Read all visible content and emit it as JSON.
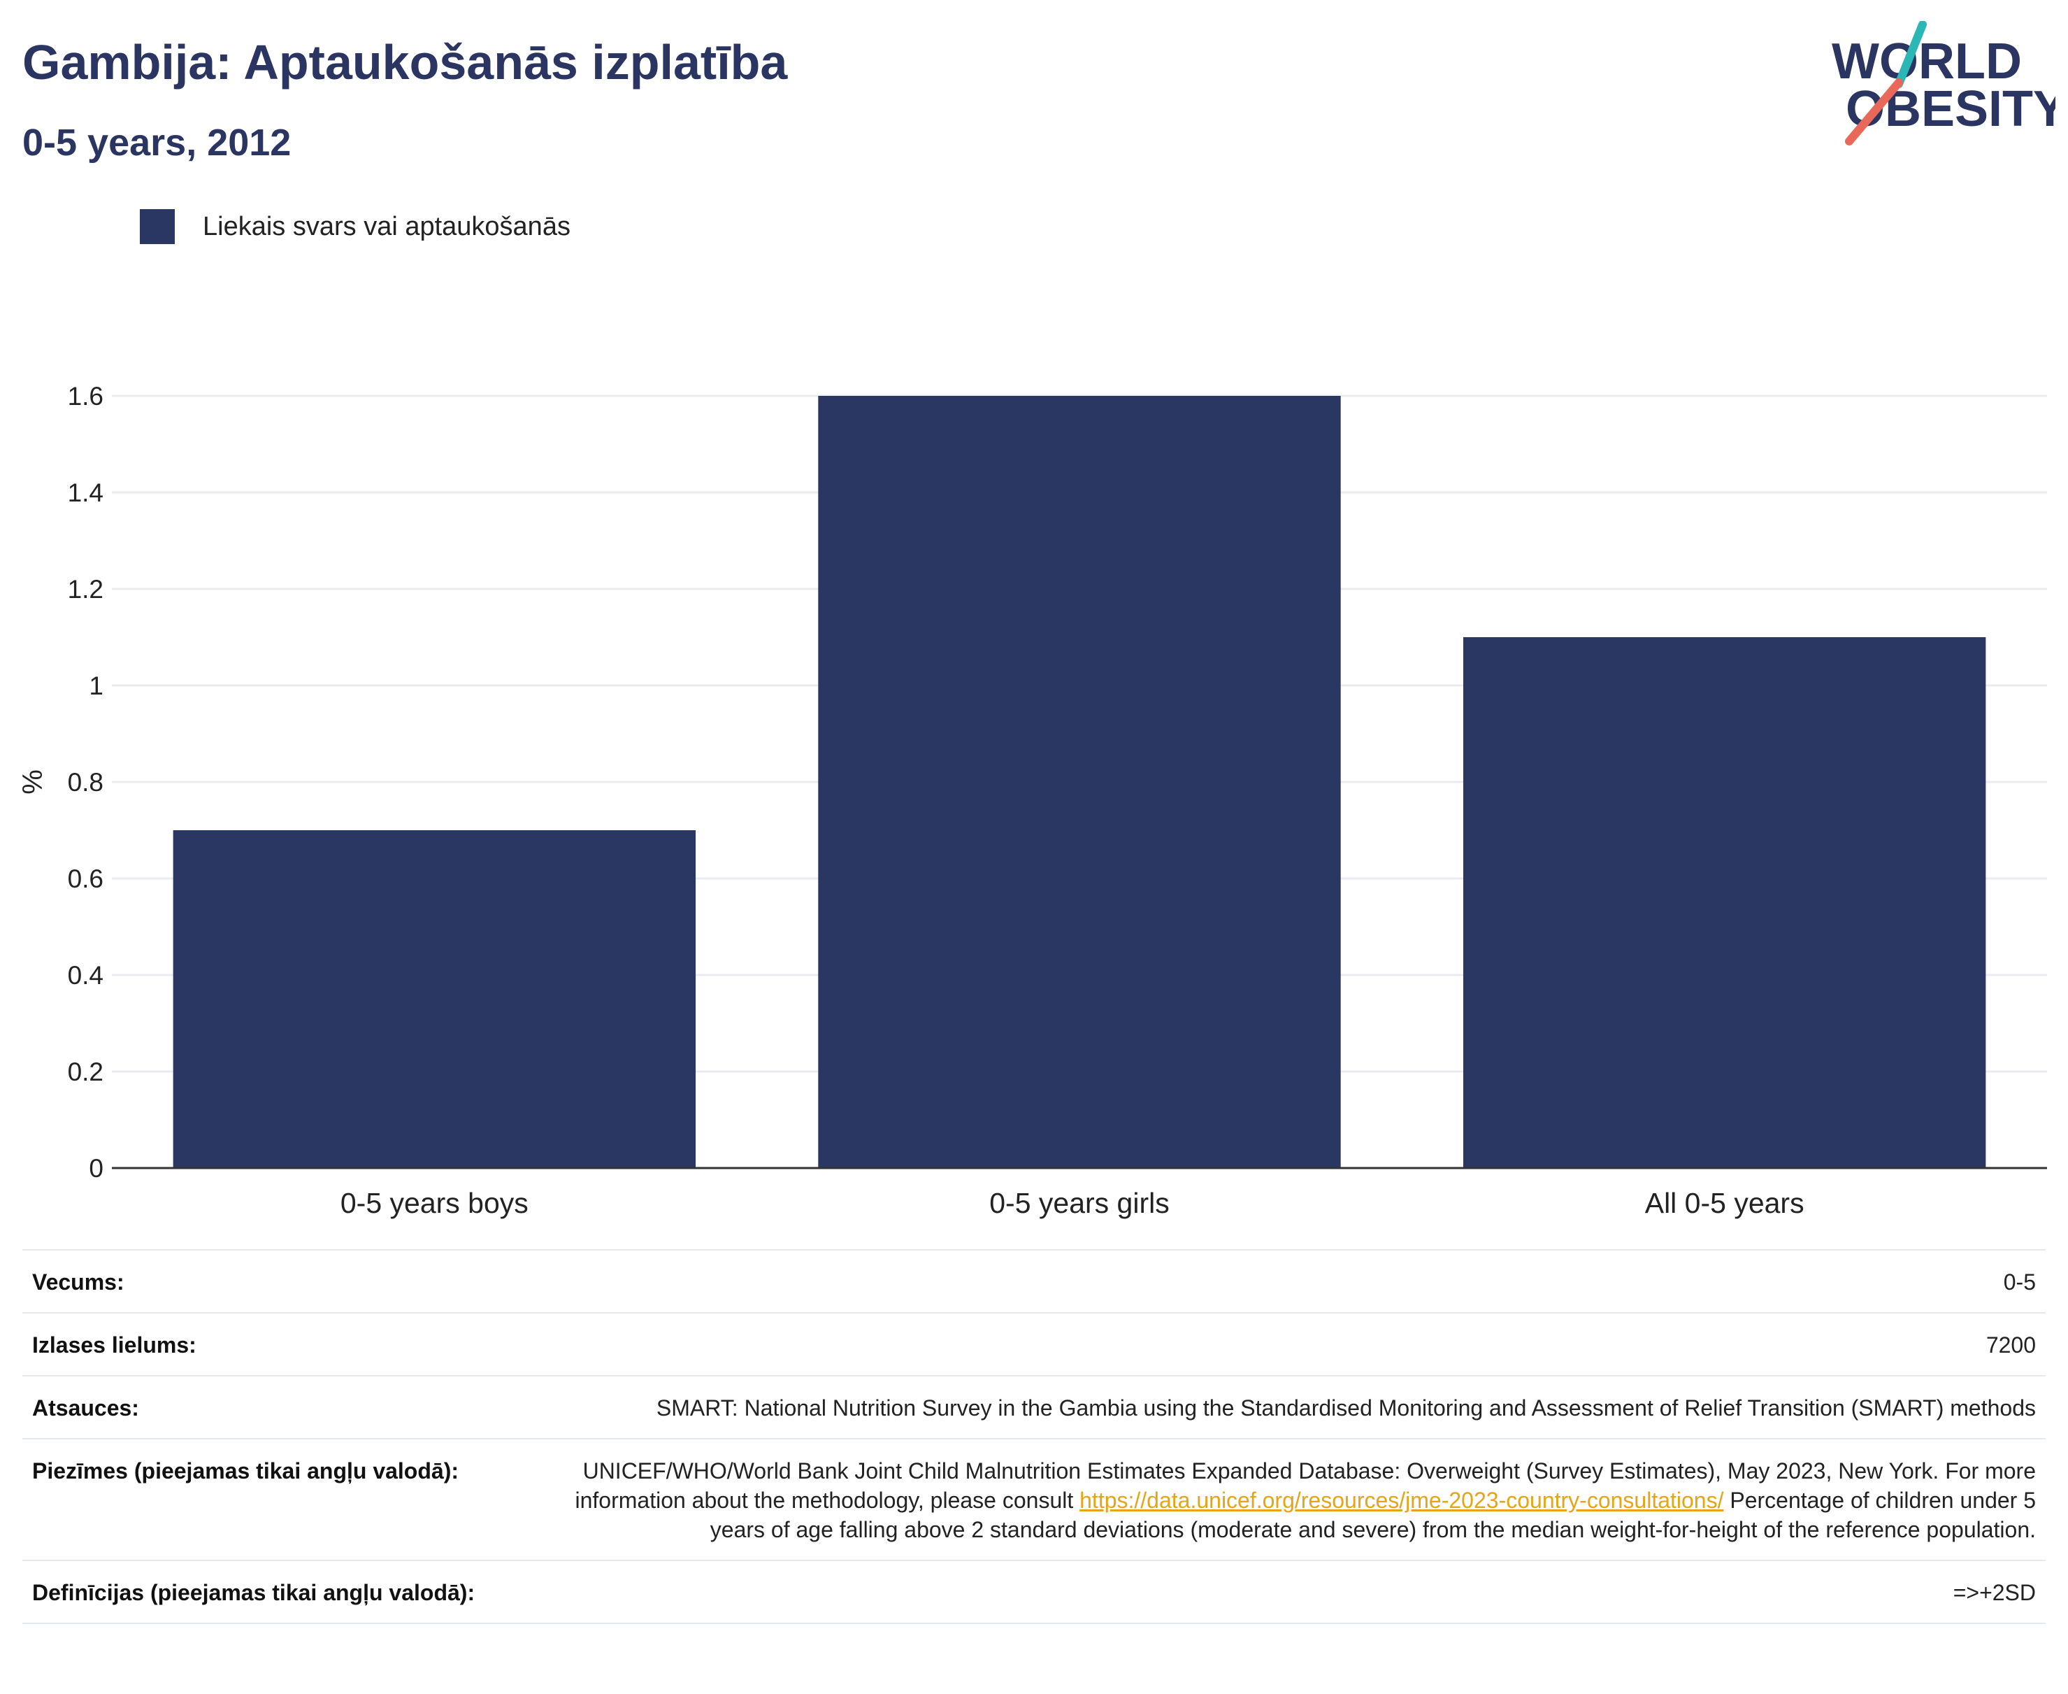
{
  "header": {
    "title": "Gambija: Aptaukošanās izplatība",
    "subtitle": "0-5 years, 2012"
  },
  "logo": {
    "line1": "WORLD",
    "line2": "OBESITY",
    "colors": {
      "navy": "#2b3561",
      "teal": "#2bb7b5",
      "coral": "#e8685a"
    }
  },
  "legend": {
    "label": "Liekais svars vai aptaukošanās",
    "color": "#2b3763"
  },
  "chart_data": {
    "type": "bar",
    "categories": [
      "0-5 years boys",
      "0-5 years girls",
      "All 0-5 years"
    ],
    "series": [
      {
        "name": "Liekais svars vai aptaukošanās",
        "values": [
          0.7,
          1.6,
          1.1
        ],
        "color": "#2b3763"
      }
    ],
    "ylabel": "%",
    "ylim": [
      0,
      1.6
    ],
    "yticks": [
      "0",
      "0.2",
      "0.4",
      "0.6",
      "0.8",
      "1",
      "1.2",
      "1.4",
      "1.6"
    ],
    "grid": true,
    "legend_position": "top-left"
  },
  "info": {
    "rows": [
      {
        "label": "Vecums:",
        "value": "0-5"
      },
      {
        "label": "Izlases lielums:",
        "value": "7200"
      },
      {
        "label": "Atsauces:",
        "value": "SMART: National Nutrition Survey in the Gambia using the Standardised Monitoring and Assessment of Relief Transition (SMART) methods"
      },
      {
        "label": "Piezīmes (pieejamas tikai angļu valodā):"
      },
      {
        "label": "Definīcijas (pieejamas tikai angļu valodā):",
        "value": "=>+2SD"
      }
    ],
    "notes": {
      "before": "UNICEF/WHO/World Bank Joint Child Malnutrition Estimates Expanded Database: Overweight (Survey Estimates), May 2023, New York. For more information about the methodology, please consult ",
      "link": "https://data.unicef.org/resources/jme-2023-country-consultations/",
      "after": " Percentage of children under 5 years of age falling above 2 standard deviations (moderate and severe) from the median weight-for-height of the reference population."
    }
  }
}
